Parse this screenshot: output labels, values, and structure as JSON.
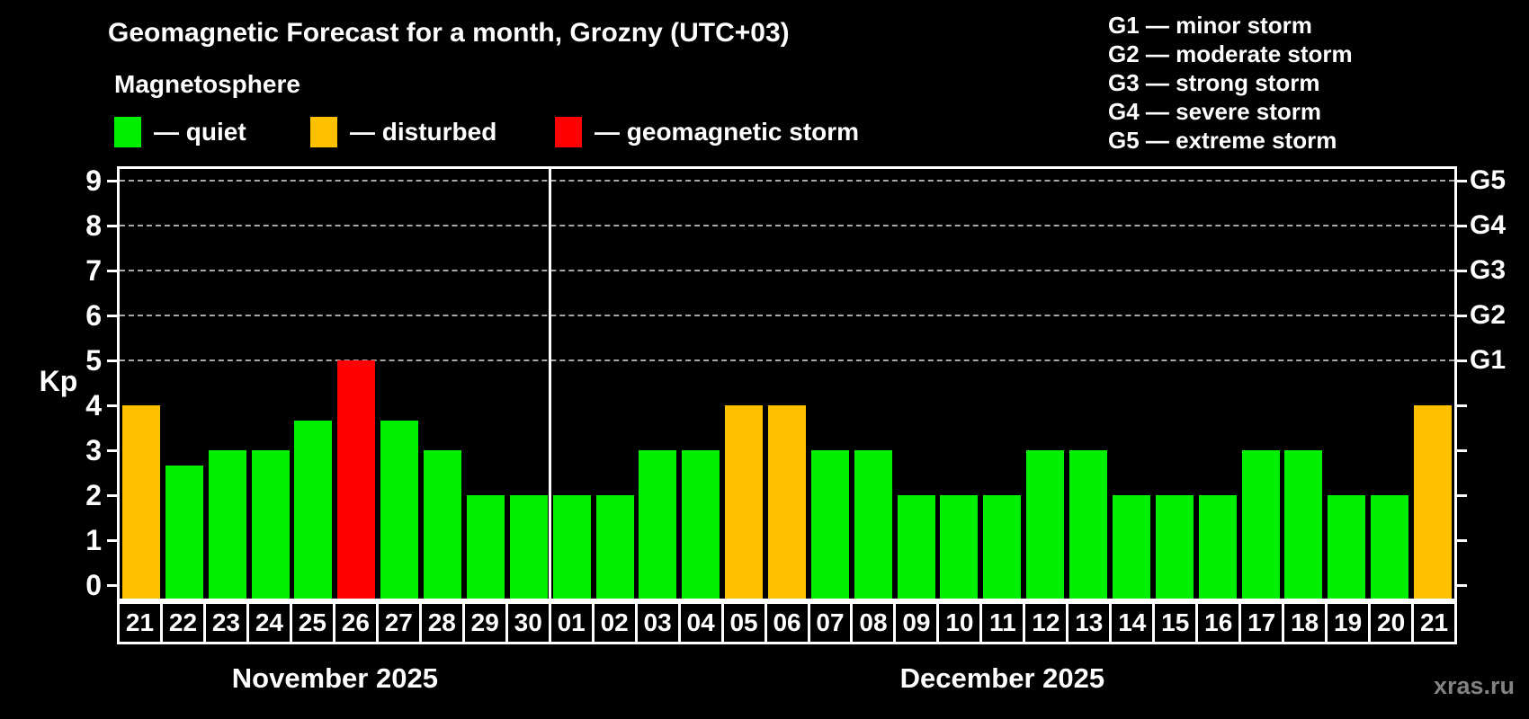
{
  "title": "Geomagnetic Forecast for a month, Grozny (UTC+03)",
  "subtitle": "Magnetosphere",
  "legend": {
    "items": [
      {
        "key": "quiet",
        "label": "— quiet",
        "color": "#00f000"
      },
      {
        "key": "disturbed",
        "label": "— disturbed",
        "color": "#ffc000"
      },
      {
        "key": "storm",
        "label": "— geomagnetic storm",
        "color": "#ff0000"
      }
    ]
  },
  "g_legend": [
    "G1 — minor storm",
    "G2 — moderate storm",
    "G3 — strong storm",
    "G4 — severe storm",
    "G5 — extreme storm"
  ],
  "axis": {
    "y_label": "Kp",
    "y_ticks": [
      0,
      1,
      2,
      3,
      4,
      5,
      6,
      7,
      8,
      9
    ],
    "g_labels": [
      {
        "label": "G1",
        "kp": 5
      },
      {
        "label": "G2",
        "kp": 6
      },
      {
        "label": "G3",
        "kp": 7
      },
      {
        "label": "G4",
        "kp": 8
      },
      {
        "label": "G5",
        "kp": 9
      }
    ]
  },
  "watermark": "xras.ru",
  "chart_data": {
    "type": "bar",
    "title": "Geomagnetic Forecast for a month, Grozny (UTC+03)",
    "xlabel": "",
    "ylabel": "Kp",
    "ylim": [
      -0.3,
      9.26
    ],
    "grid": "dashed horizontal at Kp 5-9 (G1-G5)",
    "gridlines_at": [
      5,
      6,
      7,
      8,
      9
    ],
    "months": [
      {
        "label": "November 2025",
        "days": 10
      },
      {
        "label": "December 2025",
        "days": 21
      }
    ],
    "categories": [
      "21",
      "22",
      "23",
      "24",
      "25",
      "26",
      "27",
      "28",
      "29",
      "30",
      "01",
      "02",
      "03",
      "04",
      "05",
      "06",
      "07",
      "08",
      "09",
      "10",
      "11",
      "12",
      "13",
      "14",
      "15",
      "16",
      "17",
      "18",
      "19",
      "20",
      "21"
    ],
    "values": [
      4,
      2.67,
      3,
      3,
      3.67,
      5,
      3.67,
      3,
      2,
      2,
      2,
      2,
      3,
      3,
      4,
      4,
      3,
      3,
      2,
      2,
      2,
      3,
      3,
      2,
      2,
      2,
      3,
      3,
      2,
      2,
      4
    ],
    "statuses": [
      "disturbed",
      "quiet",
      "quiet",
      "quiet",
      "quiet",
      "storm",
      "quiet",
      "quiet",
      "quiet",
      "quiet",
      "quiet",
      "quiet",
      "quiet",
      "quiet",
      "disturbed",
      "disturbed",
      "quiet",
      "quiet",
      "quiet",
      "quiet",
      "quiet",
      "quiet",
      "quiet",
      "quiet",
      "quiet",
      "quiet",
      "quiet",
      "quiet",
      "quiet",
      "quiet",
      "disturbed"
    ],
    "colors": {
      "quiet": "#00f000",
      "disturbed": "#ffc000",
      "storm": "#ff0000"
    }
  }
}
